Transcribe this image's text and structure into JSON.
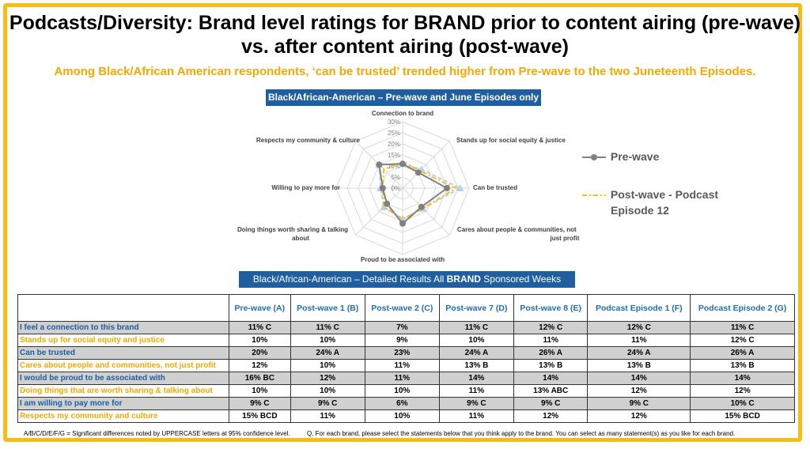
{
  "title": "Podcasts/Diversity:  Brand level ratings for BRAND prior to content airing (pre-wave) vs. after content airing (post-wave)",
  "subtitle": "Among Black/African American respondents, ‘can be trusted’ trended higher from Pre-wave to the two Juneteenth Episodes.",
  "chart_banner": "Black/African-American – Pre-wave and June Episodes only",
  "table_banner": {
    "prefix": "Black/African-American – Detailed Results All ",
    "bold": "BRAND",
    "suffix": " Sponsored Weeks"
  },
  "colors": {
    "accent": "#f6bd16",
    "banner": "#1f5fa0",
    "prewave": "#808080",
    "podcast1": "#f6bd16",
    "podcast2": "#b4d2ee"
  },
  "chart_data": {
    "type": "radar",
    "axes": [
      "Connection to brand",
      "Stands up for social equity & justice",
      "Can be trusted",
      "Cares about people & communities, not just profit",
      "Proud to be associated with",
      "Doing things worth sharing & talking about",
      "Willing to pay more for",
      "Respects my community & culture"
    ],
    "ticks": [
      "0%",
      "5%",
      "10%",
      "15%",
      "20%",
      "25%",
      "30%"
    ],
    "range": [
      0,
      30
    ],
    "legend_position": "right",
    "series": [
      {
        "name": "Pre-wave",
        "values": [
          11,
          10,
          20,
          12,
          16,
          10,
          9,
          15
        ],
        "color": "#808080",
        "marker": "circle"
      },
      {
        "name": "Post-wave - Podcast Episode 12",
        "values": [
          12,
          11,
          24,
          13,
          14,
          12,
          9,
          12
        ],
        "color": "#f6bd16",
        "marker": "none"
      },
      {
        "values": [
          11,
          12,
          26,
          13,
          14,
          12,
          10,
          15
        ],
        "color": "#b4d2ee",
        "marker": "triangle"
      }
    ]
  },
  "legend": {
    "prewave": "Pre-wave",
    "post_line1": "Post-wave - Podcast",
    "post_line2": "Episode 12"
  },
  "table": {
    "headers": [
      "",
      "Pre-wave (A)",
      "Post-wave 1 (B)",
      "Post-wave 2 (C)",
      "Post-wave 7 (D)",
      "Post-wave 8 (E)",
      "Podcast Episode 1 (F)",
      "Podcast Episode 2 (G)"
    ],
    "rows": [
      {
        "label": "I feel a connection to this brand",
        "cells": [
          "11% C",
          "11% C",
          "7%",
          "11% C",
          "12% C",
          "12% C",
          "11% C"
        ]
      },
      {
        "label": "Stands up for social equity and justice",
        "cells": [
          "10%",
          "10%",
          "9%",
          "10%",
          "11%",
          "11%",
          "12% C"
        ]
      },
      {
        "label": "Can be trusted",
        "cells": [
          "20%",
          "24% A",
          "23%",
          "24% A",
          "26% A",
          "24% A",
          "26% A"
        ]
      },
      {
        "label": "Cares about people and communities, not just profit",
        "cells": [
          "12%",
          "10%",
          "11%",
          "13% B",
          "13% B",
          "13% B",
          "13% B"
        ]
      },
      {
        "label": "I would be proud to be associated with",
        "cells": [
          "16% BC",
          "12%",
          "11%",
          "14%",
          "14%",
          "14%",
          "14%"
        ]
      },
      {
        "label": "Doing things that are worth sharing & talking about",
        "cells": [
          "10%",
          "10%",
          "10%",
          "11%",
          "13% ABC",
          "12%",
          "12%"
        ]
      },
      {
        "label": "I am willing to pay more for",
        "cells": [
          "9% C",
          "9% C",
          "6%",
          "9% C",
          "9% C",
          "9% C",
          "10% C"
        ]
      },
      {
        "label": "Respects my community and culture",
        "cells": [
          "15% BCD",
          "11%",
          "10%",
          "11%",
          "12%",
          "12%",
          "15% BCD"
        ]
      }
    ]
  },
  "footnote_left": "A/B/C/D/E/F/G = Significant differences noted by UPPERCASE letters at 95% confidence level.",
  "footnote_right": "Q. For each brand, please select the statements below that you think apply to the brand.  You can select as many statement(s) as you like for each brand."
}
